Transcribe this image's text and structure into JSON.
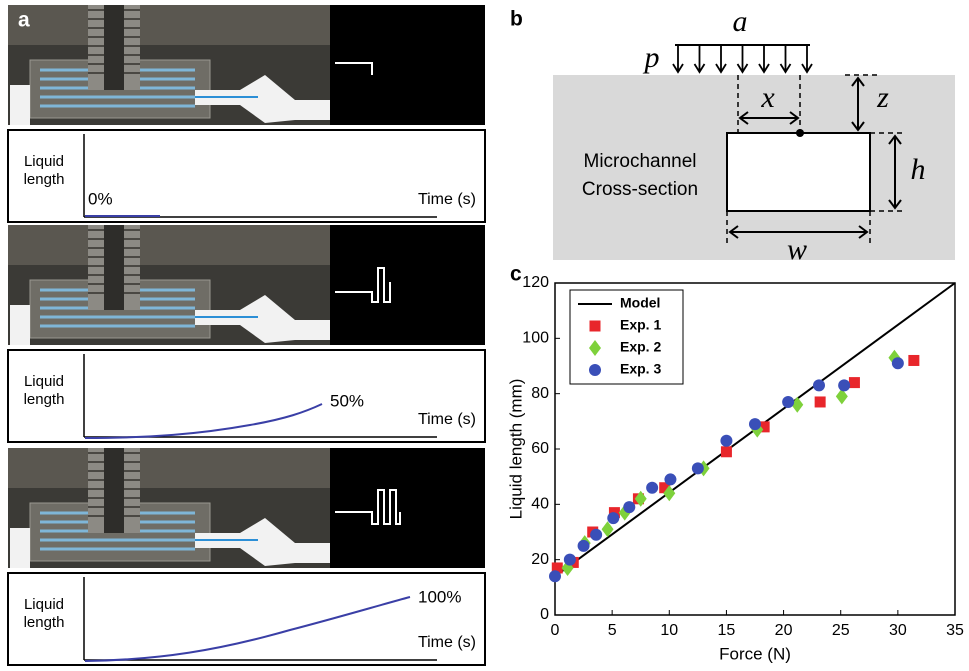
{
  "panel_a": {
    "label": "a",
    "plots": [
      {
        "y_label_lines": [
          "Liquid",
          "length"
        ],
        "x_label": "Time (s)",
        "percent": "0%"
      },
      {
        "y_label_lines": [
          "Liquid",
          "length"
        ],
        "x_label": "Time (s)",
        "percent": "50%"
      },
      {
        "y_label_lines": [
          "Liquid",
          "length"
        ],
        "x_label": "Time (s)",
        "percent": "100%"
      }
    ]
  },
  "panel_b": {
    "label": "b",
    "labels": {
      "a": "a",
      "p": "p",
      "x": "x",
      "z": "z",
      "h": "h",
      "w": "w"
    },
    "channel_lines": [
      "Microchannel",
      "Cross-section"
    ]
  },
  "panel_c": {
    "label": "c"
  },
  "chart_data": {
    "type": "scatter",
    "x_label": "Force (N)",
    "y_label": "Liquid length (mm)",
    "xlim": [
      0,
      35
    ],
    "ylim": [
      0,
      120
    ],
    "xticks": [
      0,
      5,
      10,
      15,
      20,
      25,
      30,
      35
    ],
    "yticks": [
      0,
      20,
      40,
      60,
      80,
      100,
      120
    ],
    "legend": "upper-left",
    "series": [
      {
        "name": "Model",
        "color": "#000000",
        "marker": "line",
        "x": [
          0,
          35
        ],
        "values": [
          14,
          120
        ]
      },
      {
        "name": "Exp. 1",
        "color": "#e8262b",
        "marker": "square",
        "x": [
          0.2,
          1.6,
          3.3,
          5.2,
          7.3,
          9.6,
          15,
          18.3,
          23.2,
          26.2,
          31.4
        ],
        "values": [
          17,
          19,
          30,
          37,
          42,
          46,
          59,
          68,
          77,
          84,
          92
        ]
      },
      {
        "name": "Exp. 2",
        "color": "#7ed13b",
        "marker": "diamond",
        "x": [
          1.1,
          2.6,
          4.6,
          6.1,
          7.5,
          10,
          13,
          17.7,
          21.2,
          25.1,
          29.7
        ],
        "values": [
          17,
          26,
          31,
          37,
          42,
          44,
          53,
          67,
          76,
          79,
          93
        ]
      },
      {
        "name": "Exp. 3",
        "color": "#3a4fb8",
        "marker": "circle",
        "x": [
          0,
          1.3,
          2.5,
          3.6,
          5.1,
          6.5,
          8.5,
          10.1,
          12.5,
          15,
          17.5,
          20.4,
          23.1,
          25.3,
          30
        ],
        "values": [
          14,
          20,
          25,
          29,
          35,
          39,
          46,
          49,
          53,
          63,
          69,
          77,
          83,
          83,
          91
        ]
      }
    ]
  }
}
